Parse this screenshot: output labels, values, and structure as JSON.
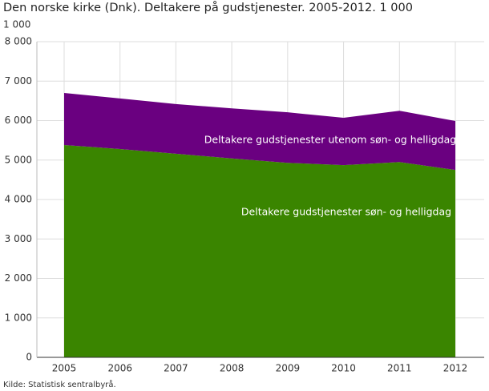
{
  "chart_data": {
    "type": "stacked_area",
    "title": "Den norske kirke (Dnk). Deltakere på gudstjenester. 2005-2012. 1 000",
    "y_unit_label": "1 000",
    "source": "Kilde: Statistisk sentralbyrå.",
    "categories": [
      "2005",
      "2006",
      "2007",
      "2008",
      "2009",
      "2010",
      "2011",
      "2012"
    ],
    "series": [
      {
        "name": "Deltakere gudstjenester søn- og helligdag",
        "color": "#3a8500",
        "values": [
          5380,
          5280,
          5160,
          5040,
          4930,
          4870,
          4950,
          4750
        ]
      },
      {
        "name": "Deltakere gudstjenester utenom søn- og helligdag",
        "color": "#6a0080",
        "values": [
          1320,
          1280,
          1260,
          1270,
          1280,
          1200,
          1300,
          1240
        ]
      }
    ],
    "ylim": [
      0,
      8000
    ],
    "yticks": [
      0,
      {
        "value": 1000,
        "label": "1 000"
      },
      {
        "value": 2000,
        "label": "2 000"
      },
      {
        "value": 3000,
        "label": "3 000"
      },
      {
        "value": 4000,
        "label": "4 000"
      },
      {
        "value": 5000,
        "label": "5 000"
      },
      {
        "value": 6000,
        "label": "6 000"
      },
      {
        "value": 7000,
        "label": "7 000"
      },
      {
        "value": 8000,
        "label": "8 000"
      }
    ],
    "grid": true
  }
}
